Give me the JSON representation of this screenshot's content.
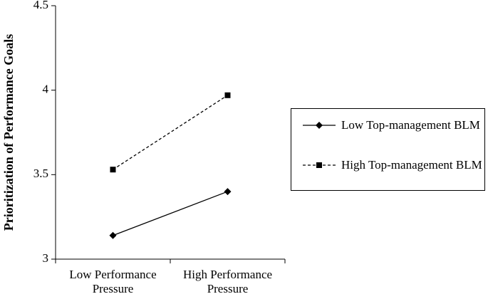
{
  "chart_data": {
    "type": "line",
    "y_label": "Prioritization of Performance Goals",
    "categories": [
      "Low Performance Pressure",
      "High Performance Pressure"
    ],
    "series": [
      {
        "name": "Low Top-management BLM",
        "color": "#000000",
        "marker": "diamond",
        "dash": "solid",
        "values": [
          3.14,
          3.4
        ]
      },
      {
        "name": "High Top-management BLM",
        "color": "#000000",
        "marker": "square",
        "dash": "dashed",
        "values": [
          3.53,
          3.97
        ]
      }
    ],
    "ylim": [
      3,
      4.5
    ],
    "yticks": [
      3,
      3.5,
      4,
      4.5
    ],
    "grid": false
  }
}
